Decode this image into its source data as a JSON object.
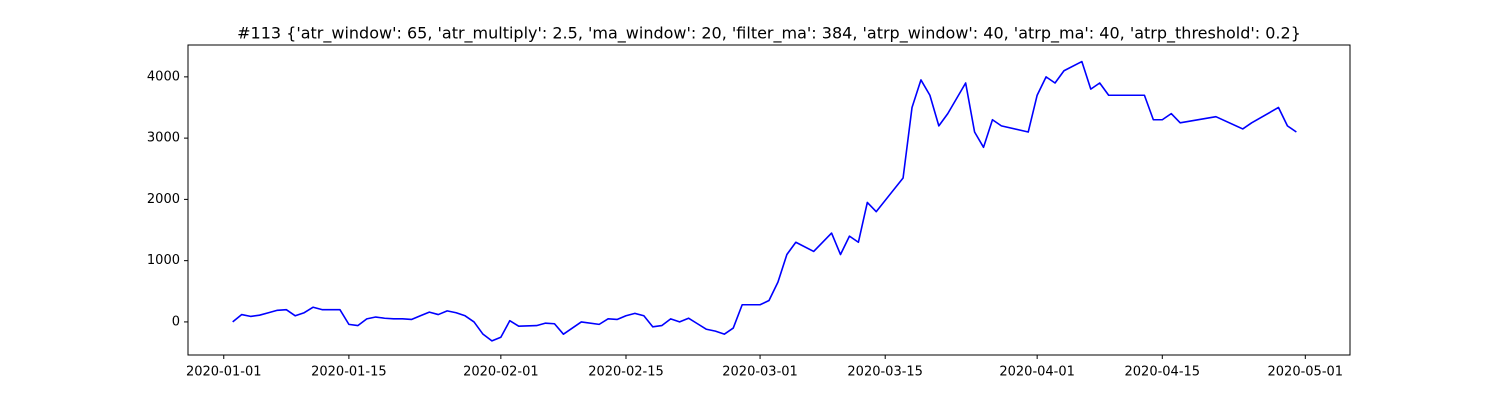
{
  "chart_data": {
    "type": "line",
    "title": "#113 {'atr_window': 65, 'atr_multiply': 2.5, 'ma_window': 20, 'filter_ma': 384, 'atrp_window': 40, 'atrp_ma': 40, 'atrp_threshold': 0.2}",
    "x": [
      "2020-01-02",
      "2020-01-03",
      "2020-01-04",
      "2020-01-05",
      "2020-01-06",
      "2020-01-07",
      "2020-01-08",
      "2020-01-09",
      "2020-01-10",
      "2020-01-11",
      "2020-01-12",
      "2020-01-14",
      "2020-01-15",
      "2020-01-16",
      "2020-01-17",
      "2020-01-18",
      "2020-01-19",
      "2020-01-20",
      "2020-01-21",
      "2020-01-22",
      "2020-01-23",
      "2020-01-24",
      "2020-01-25",
      "2020-01-26",
      "2020-01-27",
      "2020-01-28",
      "2020-01-29",
      "2020-01-30",
      "2020-01-31",
      "2020-02-01",
      "2020-02-02",
      "2020-02-03",
      "2020-02-05",
      "2020-02-06",
      "2020-02-07",
      "2020-02-08",
      "2020-02-09",
      "2020-02-10",
      "2020-02-12",
      "2020-02-13",
      "2020-02-14",
      "2020-02-15",
      "2020-02-16",
      "2020-02-17",
      "2020-02-18",
      "2020-02-19",
      "2020-02-20",
      "2020-02-21",
      "2020-02-22",
      "2020-02-23",
      "2020-02-24",
      "2020-02-25",
      "2020-02-26",
      "2020-02-27",
      "2020-02-28",
      "2020-03-01",
      "2020-03-02",
      "2020-03-03",
      "2020-03-04",
      "2020-03-05",
      "2020-03-07",
      "2020-03-09",
      "2020-03-10",
      "2020-03-11",
      "2020-03-12",
      "2020-03-13",
      "2020-03-14",
      "2020-03-17",
      "2020-03-18",
      "2020-03-19",
      "2020-03-20",
      "2020-03-21",
      "2020-03-22",
      "2020-03-24",
      "2020-03-25",
      "2020-03-26",
      "2020-03-27",
      "2020-03-28",
      "2020-03-31",
      "2020-04-01",
      "2020-04-02",
      "2020-04-03",
      "2020-04-04",
      "2020-04-06",
      "2020-04-07",
      "2020-04-08",
      "2020-04-09",
      "2020-04-13",
      "2020-04-14",
      "2020-04-15",
      "2020-04-16",
      "2020-04-17",
      "2020-04-21",
      "2020-04-24",
      "2020-04-25",
      "2020-04-28",
      "2020-04-29",
      "2020-04-30"
    ],
    "series": [
      {
        "color": "#0000ff",
        "values": [
          0,
          120,
          90,
          110,
          150,
          190,
          200,
          100,
          150,
          240,
          200,
          200,
          -40,
          -60,
          50,
          80,
          60,
          50,
          50,
          40,
          100,
          160,
          120,
          180,
          150,
          100,
          0,
          -200,
          -310,
          -250,
          20,
          -70,
          -60,
          -20,
          -30,
          -200,
          -100,
          0,
          -40,
          50,
          40,
          100,
          140,
          100,
          -80,
          -60,
          50,
          0,
          60,
          -30,
          -120,
          -150,
          -200,
          -100,
          280,
          280,
          350,
          650,
          1100,
          1300,
          1150,
          1450,
          1100,
          1400,
          1300,
          1950,
          1800,
          2350,
          3500,
          3950,
          3700,
          3200,
          3400,
          3900,
          3100,
          2850,
          3300,
          3200,
          3100,
          3700,
          4000,
          3900,
          4100,
          4250,
          3800,
          3900,
          3700,
          3700,
          3300,
          3300,
          3400,
          3250,
          3350,
          3150,
          3250,
          3500,
          3200,
          3100
        ]
      }
    ],
    "xlim": [
      "2019-12-28",
      "2020-05-06"
    ],
    "xticks": [
      "2020-01-01",
      "2020-01-15",
      "2020-02-01",
      "2020-02-15",
      "2020-03-01",
      "2020-03-15",
      "2020-04-01",
      "2020-04-15",
      "2020-05-01"
    ],
    "ylim": [
      -540,
      4520
    ],
    "yticks": [
      0,
      1000,
      2000,
      3000,
      4000
    ]
  }
}
